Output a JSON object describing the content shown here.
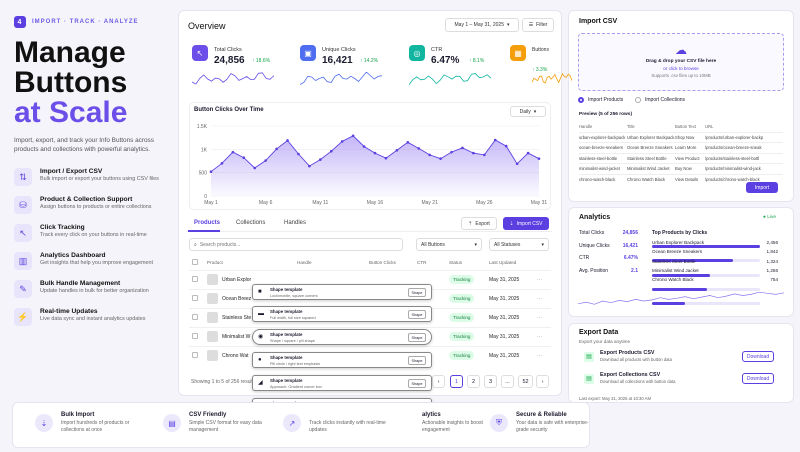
{
  "brand": {
    "logo": "4",
    "tagline": "IMPORT · TRACK · ANALYZE"
  },
  "hero": {
    "line1": "Manage",
    "line2": "Buttons",
    "line3": "at Scale",
    "sub": "Import, export, and track your Info Buttons across products and collections with powerful analytics."
  },
  "features": [
    {
      "icon": "⇅",
      "title": "Import / Export CSV",
      "desc": "Bulk import or export your buttons using CSV files"
    },
    {
      "icon": "⛁",
      "title": "Product & Collection Support",
      "desc": "Assign buttons to products or entire collections"
    },
    {
      "icon": "↖",
      "title": "Click Tracking",
      "desc": "Track every click on your buttons in real-time"
    },
    {
      "icon": "▥",
      "title": "Analytics Dashboard",
      "desc": "Get insights that help you improve engagement"
    },
    {
      "icon": "✎",
      "title": "Bulk Handle Management",
      "desc": "Update handles in bulk for better organization"
    },
    {
      "icon": "⚡",
      "title": "Real-time Updates",
      "desc": "Live data sync and instant analytics updates"
    }
  ],
  "overview": {
    "title": "Overview",
    "date_range": "May 1 – May 31, 2025",
    "filter": "Filter"
  },
  "stats": [
    {
      "label": "Total Clicks",
      "value": "24,856",
      "delta": "↑ 18.6%",
      "color": "#6c4ee8"
    },
    {
      "label": "Unique Clicks",
      "value": "16,421",
      "delta": "↑ 14.2%",
      "color": "#4f6df0"
    },
    {
      "label": "CTR",
      "value": "6.47%",
      "delta": "↑ 8.1%",
      "color": "#12b5a0"
    },
    {
      "label": "Buttons",
      "value": "",
      "delta": "↑ 3.3%",
      "color": "#f59e0b"
    }
  ],
  "chart_data": {
    "type": "area",
    "title": "Button Clicks Over Time",
    "period": "Daily",
    "yticks": [
      "0",
      "500",
      "1K",
      "1.5K"
    ],
    "xticks": [
      "May 1",
      "May 6",
      "May 11",
      "May 16",
      "May 21",
      "May 26",
      "May 31"
    ],
    "ylim": [
      0,
      1500
    ],
    "values": [
      520,
      700,
      940,
      820,
      600,
      760,
      1010,
      1190,
      900,
      640,
      780,
      960,
      1170,
      1290,
      1060,
      920,
      810,
      980,
      1150,
      1020,
      880,
      800,
      940,
      1030,
      920,
      880,
      1200,
      1070,
      690,
      920,
      800
    ]
  },
  "tabs": {
    "products": "Products",
    "collections": "Collections",
    "handles": "Handles",
    "export": "Export",
    "import_csv": "Import CSV"
  },
  "search": {
    "placeholder": "Search products...",
    "all_buttons": "All Buttons",
    "all_statuses": "All Statuses"
  },
  "table": {
    "headers": [
      "Product",
      "Handle",
      "Button Clicks",
      "CTR",
      "Status",
      "Last Updated"
    ],
    "rows": [
      {
        "product": "Urban Explor",
        "status": "Tracking",
        "updated": "May 31, 2025"
      },
      {
        "product": "Ocean Breez",
        "status": "Tracking",
        "updated": "May 31, 2025"
      },
      {
        "product": "Stainless Ste",
        "status": "Tracking",
        "updated": "May 31, 2025"
      },
      {
        "product": "Minimalist W",
        "status": "Tracking",
        "updated": "May 31, 2025"
      },
      {
        "product": "Chrono Wat",
        "status": "Tracking",
        "updated": "May 31, 2025"
      }
    ],
    "footer": "Showing 1 to 5 of 256 result",
    "pages": [
      "1",
      "2",
      "3",
      "...",
      "52"
    ]
  },
  "popups": [
    {
      "icon": "■",
      "title": "Shape template",
      "desc": "Lock/mobile, square corners",
      "btn": "Shape"
    },
    {
      "icon": "▬",
      "title": "Shape template",
      "desc": "Full width, full size squared",
      "btn": "Shape"
    },
    {
      "icon": "◉",
      "title": "Shape template",
      "desc": "Shape / square / pill shape",
      "btn": "Shape"
    },
    {
      "icon": "●",
      "title": "Shape template",
      "desc": "Pill circle / right text emphasis",
      "btn": "Shape"
    },
    {
      "icon": "◢",
      "title": "Shape template",
      "desc": "Approach: Gradient  corner box",
      "btn": "Shape"
    },
    {
      "icon": "▭",
      "title": "Shape template",
      "desc": "Standard / outlined / shadow",
      "btn": "Shape"
    }
  ],
  "import": {
    "title": "Import CSV",
    "drop": "Drag & drop your CSV file here",
    "browse": "or click to browse",
    "support": "Supports .csv files up to 10MB",
    "radio1": "Import Products",
    "radio2": "Import Collections",
    "preview": "Preview (5 of 256 rows)",
    "headers": [
      "Handle",
      "Title",
      "Button Text",
      "URL"
    ],
    "rows": [
      [
        "urban-explorer-backpack",
        "Urban Explorer Backpack",
        "Shop Now",
        "/products/urban-explorer-backp"
      ],
      [
        "ocean-breeze-sneakers",
        "Ocean Breeze Sneakers",
        "Learn More",
        "/products/ocean-breeze-sneak"
      ],
      [
        "stainless-steel-bottle",
        "Stainless Steel Bottle",
        "View Product",
        "/products/stainless-steel-bottl"
      ],
      [
        "minimalist-wind-jacket",
        "Minimalist Wind Jacket",
        "Buy Now",
        "/products/minimalist-wind-jack"
      ],
      [
        "chrono-watch-black",
        "Chrono Watch Black",
        "View Details",
        "/products/chrono-watch-black"
      ]
    ],
    "button": "Import"
  },
  "analytics": {
    "title": "Analytics",
    "live": "● Live",
    "rows": [
      [
        "Total Clicks",
        "24,856"
      ],
      [
        "Unique Clicks",
        "16,421"
      ],
      [
        "CTR",
        "6.47%"
      ],
      [
        "Avg. Position",
        "2.1"
      ]
    ],
    "top_title": "Top Products by Clicks",
    "top": [
      {
        "name": "Urban Explorer Backpack",
        "value": "2,456",
        "pct": 1.0
      },
      {
        "name": "Ocean Breeze Sneakers",
        "value": "1,842",
        "pct": 0.75
      },
      {
        "name": "Stainless Steel Bottle",
        "value": "1,324",
        "pct": 0.54
      },
      {
        "name": "Minimalist Wind Jacket",
        "value": "1,256",
        "pct": 0.51
      },
      {
        "name": "Chrono Watch Black",
        "value": "754",
        "pct": 0.31
      }
    ],
    "spark": [
      30,
      36,
      28,
      40,
      34,
      42,
      38,
      46,
      40,
      44,
      52,
      46,
      50,
      56,
      48,
      54,
      60,
      52,
      58,
      66,
      60,
      64,
      72,
      68,
      64,
      70
    ]
  },
  "export": {
    "title": "Export Data",
    "sub": "Export your data anytime",
    "items": [
      {
        "title": "Export Products CSV",
        "desc": "Download all products with button data",
        "btn": "Download"
      },
      {
        "title": "Export Collections CSV",
        "desc": "Download all collections with button data",
        "btn": "Download"
      }
    ],
    "last": "Last export: May 31, 2025 at 10:30 AM"
  },
  "bottom": [
    {
      "icon": "⇣",
      "title": "Bulk Import",
      "desc": "Import hundreds of products or collections at once"
    },
    {
      "icon": "▤",
      "title": "CSV Friendly",
      "desc": "Simple CSV format for easy data management"
    },
    {
      "icon": "↗",
      "title": "",
      "desc": "Track clicks instantly with real-time updates"
    },
    {
      "icon": "",
      "title": "alytics",
      "desc": "Actionable insights to boost engagement"
    },
    {
      "icon": "⛨",
      "title": "Secure & Reliable",
      "desc": "Your data is safe with enterprise-grade security"
    }
  ]
}
